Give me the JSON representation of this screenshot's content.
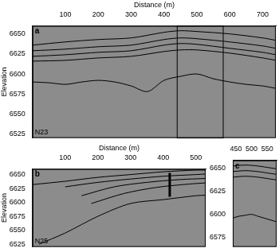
{
  "chart_data": [
    {
      "type": "line",
      "title": "a",
      "annotation": "N23",
      "xlabel": "Distance (m)",
      "ylabel": "Elevation",
      "xlim": [
        0,
        740
      ],
      "xticks": [
        100,
        200,
        300,
        400,
        500,
        600,
        700
      ],
      "ylim": [
        6520,
        6660
      ],
      "yticks": [
        6525,
        6550,
        6575,
        6600,
        6625,
        6650
      ],
      "series": [
        {
          "color": "#000000",
          "x": [
            0,
            100,
            200,
            300,
            400,
            450,
            500,
            600,
            700,
            740
          ],
          "values": [
            6636,
            6640,
            6643,
            6645,
            6652,
            6654,
            6653,
            6650,
            6645,
            6642
          ]
        },
        {
          "color": "#000000",
          "x": [
            0,
            100,
            200,
            300,
            400,
            450,
            500,
            600,
            700,
            740
          ],
          "values": [
            6629,
            6631,
            6634,
            6636,
            6643,
            6645,
            6644,
            6640,
            6635,
            6632
          ]
        },
        {
          "color": "#000000",
          "x": [
            0,
            100,
            200,
            300,
            400,
            450,
            500,
            600,
            700,
            740
          ],
          "values": [
            6622,
            6624,
            6627,
            6629,
            6636,
            6638,
            6637,
            6632,
            6627,
            6624
          ]
        },
        {
          "color": "#000000",
          "x": [
            0,
            100,
            200,
            300,
            400,
            450,
            500,
            600,
            700,
            740
          ],
          "values": [
            6616,
            6617,
            6620,
            6622,
            6628,
            6630,
            6630,
            6626,
            6620,
            6617
          ]
        },
        {
          "color": "#000000",
          "x": [
            0,
            50,
            100,
            150,
            200,
            250,
            300,
            350,
            400,
            450,
            500,
            550,
            600,
            650,
            700,
            740
          ],
          "values": [
            6590,
            6589,
            6587,
            6590,
            6592,
            6590,
            6585,
            6578,
            6592,
            6597,
            6600,
            6594,
            6590,
            6587,
            6585,
            6582
          ]
        }
      ]
    },
    {
      "type": "line",
      "title": "b",
      "annotation": "N25",
      "xlabel": "Distance (m)",
      "ylabel": "Elevation",
      "xlim": [
        0,
        530
      ],
      "xticks": [
        100,
        200,
        300,
        400,
        500
      ],
      "ylim": [
        6520,
        6660
      ],
      "yticks": [
        6525,
        6550,
        6575,
        6600,
        6625,
        6650
      ],
      "series": [
        {
          "color": "#000000",
          "x": [
            0,
            100,
            200,
            300,
            400,
            500,
            530
          ],
          "values": [
            6632,
            6638,
            6645,
            6650,
            6655,
            6658,
            6658
          ]
        },
        {
          "color": "#000000",
          "x": [
            100,
            200,
            300,
            400,
            500,
            530
          ],
          "values": [
            6628,
            6636,
            6642,
            6647,
            6650,
            6651
          ]
        },
        {
          "color": "#000000",
          "x": [
            150,
            250,
            350,
            450,
            530
          ],
          "values": [
            6612,
            6628,
            6636,
            6641,
            6643
          ]
        },
        {
          "color": "#000000",
          "x": [
            180,
            280,
            380,
            480,
            530
          ],
          "values": [
            6598,
            6616,
            6627,
            6633,
            6635
          ]
        },
        {
          "color": "#000000",
          "x": [
            20,
            100,
            200,
            300,
            400,
            500,
            530
          ],
          "values": [
            6525,
            6545,
            6575,
            6598,
            6605,
            6612,
            6613
          ]
        },
        {
          "color": "#000000",
          "line_style": "thick",
          "x": [
            420,
            420
          ],
          "values": [
            6610,
            6653
          ]
        }
      ]
    },
    {
      "type": "line",
      "title": "c",
      "xlim": [
        440,
        580
      ],
      "xticks": [
        450,
        500,
        550
      ],
      "ylim": [
        6565,
        6658
      ],
      "yticks": [
        6575,
        6600,
        6625,
        6650
      ],
      "series": [
        {
          "color": "#000000",
          "x": [
            440,
            480,
            520,
            560,
            580
          ],
          "values": [
            6652,
            6653,
            6652,
            6650,
            6649
          ]
        },
        {
          "color": "#000000",
          "x": [
            440,
            480,
            520,
            560,
            580
          ],
          "values": [
            6646,
            6647,
            6646,
            6644,
            6643
          ]
        },
        {
          "color": "#000000",
          "x": [
            440,
            480,
            520,
            560,
            580
          ],
          "values": [
            6640,
            6641,
            6640,
            6638,
            6637
          ]
        },
        {
          "color": "#000000",
          "x": [
            440,
            460,
            480,
            500,
            520,
            540,
            560,
            580
          ],
          "values": [
            6596,
            6598,
            6599,
            6600,
            6598,
            6596,
            6594,
            6592
          ]
        }
      ]
    }
  ]
}
